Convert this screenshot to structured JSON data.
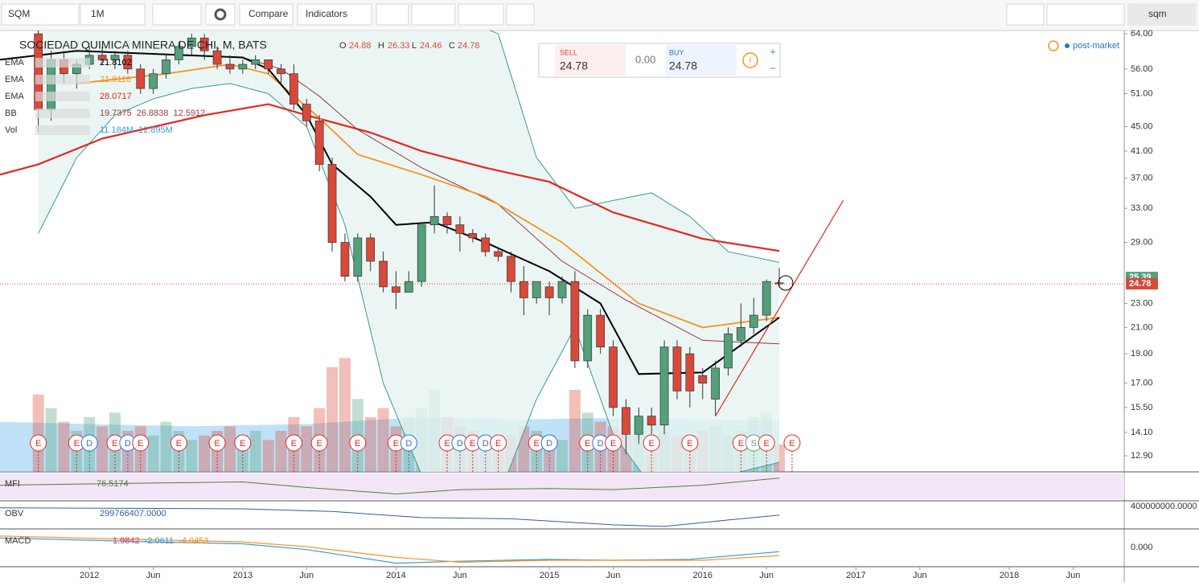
{
  "toolbar": {
    "symbol": "SQM",
    "interval": "1M",
    "compare": "Compare",
    "indicators": "Indicators",
    "search": "sqm"
  },
  "trade": {
    "sell_label": "SELL",
    "sell": 24.78,
    "spread": "0.00",
    "buy_label": "BUY",
    "buy": 24.78
  },
  "post_market": "post-market",
  "chart_data": {
    "type": "candlestick",
    "title": "SOCIEDAD QUIMICA MINERA DE CHI, M, BATS",
    "ohlc_labels": {
      "o": "O",
      "o_value": 24.88,
      "h": "H",
      "h_value": 26.33,
      "l": "L",
      "l_value": 24.46,
      "c": "C",
      "c_value": 24.78
    },
    "x": [
      "2011-09",
      "2011-10",
      "2011-11",
      "2011-12",
      "2012-01",
      "2012-02",
      "2012-03",
      "2012-04",
      "2012-05",
      "2012-06",
      "2012-07",
      "2012-08",
      "2012-09",
      "2012-10",
      "2012-11",
      "2012-12",
      "2013-01",
      "2013-02",
      "2013-03",
      "2013-04",
      "2013-05",
      "2013-06",
      "2013-07",
      "2013-08",
      "2013-09",
      "2013-10",
      "2013-11",
      "2013-12",
      "2014-01",
      "2014-02",
      "2014-03",
      "2014-04",
      "2014-05",
      "2014-06",
      "2014-07",
      "2014-08",
      "2014-09",
      "2014-10",
      "2014-11",
      "2014-12",
      "2015-01",
      "2015-02",
      "2015-03",
      "2015-04",
      "2015-05",
      "2015-06",
      "2015-07",
      "2015-08",
      "2015-09",
      "2015-10",
      "2015-11",
      "2015-12",
      "2016-01",
      "2016-02",
      "2016-03",
      "2016-04",
      "2016-05",
      "2016-06",
      "2016-07"
    ],
    "open": [
      64,
      48,
      58,
      55,
      57,
      59,
      58,
      59,
      56,
      52,
      55,
      58,
      61,
      63,
      60,
      57,
      56,
      57,
      58,
      56,
      55,
      49,
      46,
      39,
      29,
      25.5,
      29.5,
      27,
      24.5,
      24,
      25,
      31,
      32,
      31,
      30,
      29.5,
      28,
      27.5,
      25,
      23.5,
      24.5,
      23.5,
      25,
      18.5,
      22,
      19.5,
      15.5,
      14,
      15,
      14.5,
      19.5,
      19,
      17.5,
      16,
      18,
      20,
      21,
      22,
      24.88
    ],
    "high": [
      65,
      60,
      60,
      58,
      61,
      61,
      60,
      60,
      57,
      56,
      59,
      62,
      64,
      64,
      61,
      59,
      58,
      59,
      58,
      57,
      57,
      50,
      47,
      40,
      30,
      30,
      30,
      28,
      26,
      26,
      31,
      36,
      32.5,
      32,
      30.5,
      30,
      28.5,
      28,
      26.5,
      25,
      25,
      25.5,
      26,
      22.5,
      22.5,
      20,
      16,
      15.5,
      15.5,
      20,
      20,
      19.5,
      18,
      18.5,
      21,
      23,
      23.5,
      25.2,
      26.33
    ],
    "low": [
      44,
      46,
      53,
      52,
      56,
      57,
      56,
      55,
      51,
      51,
      54,
      57,
      59,
      58,
      56,
      55,
      55,
      56,
      55,
      53,
      48,
      45,
      38,
      28,
      25,
      25,
      26,
      24,
      22.5,
      24,
      24.5,
      30,
      30,
      28,
      29,
      27.5,
      27,
      24,
      22,
      23,
      22,
      23,
      18,
      18,
      19,
      15,
      13,
      13.5,
      14,
      14,
      16,
      15.5,
      16,
      15,
      17.5,
      19.5,
      20.5,
      21.5,
      24.46
    ],
    "close": [
      48,
      58,
      55,
      57,
      59,
      58,
      59,
      56,
      52,
      55,
      58,
      61,
      63,
      60,
      57,
      56,
      57,
      58,
      56,
      55,
      49,
      46,
      39,
      29,
      25.5,
      29.5,
      27,
      24.5,
      24,
      25,
      31,
      32,
      31,
      30,
      29.5,
      28,
      27.5,
      25,
      23.5,
      25,
      23.5,
      25,
      18.5,
      22,
      19.5,
      15.5,
      14,
      15,
      14.5,
      19.5,
      16.5,
      16.5,
      17,
      18,
      20.5,
      21,
      22,
      25,
      24.78
    ],
    "up_color": "#53a07a",
    "down_color": "#d9493a",
    "volume": [
      17,
      14,
      11,
      9,
      12,
      10,
      13,
      9,
      10,
      8,
      11,
      9,
      7,
      8,
      9,
      10,
      8,
      9,
      7,
      9,
      12,
      10,
      14,
      23,
      25,
      16,
      12,
      14,
      10,
      12,
      14,
      18,
      12,
      10,
      9,
      8,
      7,
      8,
      10,
      9,
      8,
      7,
      18,
      13,
      11,
      10,
      9,
      12,
      8,
      9,
      8,
      7,
      9,
      10,
      8,
      9,
      12,
      13,
      6
    ],
    "volume_ylim": [
      0,
      30
    ],
    "volume_ma": {
      "x": [
        "2011-06",
        "2012-01",
        "2012-09",
        "2013-06",
        "2014-03",
        "2014-10",
        "2015-06",
        "2016-01",
        "2016-07"
      ],
      "values": [
        11,
        10.5,
        10,
        10.5,
        12,
        11.5,
        11.8,
        11.5,
        11.2
      ],
      "color": "#8ccbf2"
    },
    "xlim": [
      "2011-06",
      "2018-10"
    ],
    "xticks": [
      {
        "value": "2012-01",
        "label": "2012"
      },
      {
        "value": "2012-06",
        "label": "Jun"
      },
      {
        "value": "2013-01",
        "label": "2013"
      },
      {
        "value": "2013-06",
        "label": "Jun"
      },
      {
        "value": "2014-01",
        "label": "2014"
      },
      {
        "value": "2014-06",
        "label": "Jun"
      },
      {
        "value": "2015-01",
        "label": "2015"
      },
      {
        "value": "2015-06",
        "label": "Jun"
      },
      {
        "value": "2016-01",
        "label": "2016"
      },
      {
        "value": "2016-06",
        "label": "Jun"
      },
      {
        "value": "2017-01",
        "label": "2017"
      },
      {
        "value": "2017-06",
        "label": "Jun"
      },
      {
        "value": "2018-01",
        "label": "2018"
      },
      {
        "value": "2018-06",
        "label": "Jun"
      }
    ],
    "ylim": [
      12.14,
      64.8
    ],
    "log_scale": true,
    "yticks": [
      {
        "value": 64,
        "label": "64.00"
      },
      {
        "value": 56,
        "label": "56.00"
      },
      {
        "value": 51,
        "label": "51.00"
      },
      {
        "value": 45,
        "label": "45.00"
      },
      {
        "value": 41,
        "label": "41.00"
      },
      {
        "value": 37,
        "label": "37.00"
      },
      {
        "value": 33,
        "label": "33.00"
      },
      {
        "value": 29,
        "label": "29.00"
      },
      {
        "value": 23,
        "label": "23.00"
      },
      {
        "value": 21,
        "label": "21.00"
      },
      {
        "value": 19,
        "label": "19.00"
      },
      {
        "value": 17,
        "label": "17.00"
      },
      {
        "value": 15.5,
        "label": "15.50"
      },
      {
        "value": 14.1,
        "label": "14.10"
      },
      {
        "value": 12.9,
        "label": "12.90"
      }
    ],
    "price_labels": [
      {
        "value": 25.39,
        "color": "#53a07a"
      },
      {
        "value": 24.78,
        "color": "#d9493a"
      }
    ],
    "legend": [
      {
        "name": "EMA",
        "values": [
          21.8102
        ],
        "color": "#000000"
      },
      {
        "name": "EMA",
        "values": [
          21.8118
        ],
        "color": "#f7931e"
      },
      {
        "name": "EMA",
        "values": [
          28.0717
        ],
        "color": "#e5261f"
      },
      {
        "name": "BB",
        "values": [
          19.7375,
          26.8838,
          12.5912
        ],
        "color": "#a33b3b"
      },
      {
        "name": "Vol",
        "values": [
          "11.184M",
          "12.895M"
        ],
        "color": "#3a9bd9"
      }
    ],
    "bands": {
      "x": [
        "2011-09",
        "2011-12",
        "2012-03",
        "2012-06",
        "2012-09",
        "2012-12",
        "2013-03",
        "2013-06",
        "2013-09",
        "2013-12",
        "2014-03",
        "2014-06",
        "2014-09",
        "2014-12",
        "2015-03",
        "2015-06",
        "2015-09",
        "2015-12",
        "2016-03",
        "2016-07"
      ],
      "upper": [
        78,
        82,
        84,
        80,
        76,
        74,
        76,
        80,
        84,
        80,
        74,
        68,
        64,
        40,
        33,
        34,
        35,
        32,
        28,
        26.88
      ],
      "lower": [
        30,
        40,
        47,
        50,
        52,
        53,
        51,
        45,
        31,
        17,
        12,
        10,
        11,
        16,
        21,
        14,
        11.5,
        11,
        12,
        12.59
      ],
      "color": "#3a9a94",
      "fill": "#e6f4f1"
    },
    "overlays": [
      {
        "x": [
          "2011-06",
          "2011-09",
          "2012-02",
          "2012-10",
          "2013-03",
          "2013-06",
          "2013-11",
          "2014-03",
          "2014-08",
          "2015-01",
          "2015-06",
          "2016-01",
          "2016-07"
        ],
        "values": [
          37.5,
          39,
          43,
          47,
          49,
          47,
          44,
          41,
          38.5,
          36.5,
          32.5,
          29.4,
          28.0717
        ],
        "color": "#e5261f"
      },
      {
        "x": [
          "2013-01",
          "2013-04",
          "2013-07",
          "2013-10",
          "2014-03",
          "2014-09",
          "2015-02",
          "2015-07",
          "2016-01",
          "2016-07"
        ],
        "values": [
          58.5,
          56,
          50.5,
          44.5,
          38.5,
          33.5,
          27,
          23.3,
          20,
          19.7375
        ],
        "color": "#8b3a3a"
      },
      {
        "x": [
          "2011-12",
          "2012-07",
          "2012-12",
          "2013-03",
          "2013-07",
          "2013-10",
          "2014-03",
          "2014-08",
          "2015-02",
          "2015-08",
          "2016-01",
          "2016-07"
        ],
        "values": [
          53,
          55,
          57,
          55,
          46.5,
          40.5,
          37.5,
          34.5,
          29,
          23,
          21,
          21.8118
        ],
        "color": "#f7931e"
      },
      {
        "x": [
          "2011-06",
          "2011-12",
          "2013-01",
          "2013-03",
          "2013-06",
          "2013-08",
          "2013-11",
          "2014-01",
          "2014-04",
          "2014-08",
          "2015-01",
          "2015-05",
          "2015-08",
          "2016-01",
          "2016-07"
        ],
        "values": [
          58,
          60,
          58.5,
          56,
          47,
          39,
          34.5,
          31,
          31.3,
          29,
          26,
          23,
          17.6,
          17.7,
          21.8102
        ],
        "color": "#000000"
      }
    ],
    "trendline": {
      "x": [
        "2016-02",
        "2016-12"
      ],
      "values": [
        15,
        34
      ],
      "color": "#e5261f"
    },
    "events": [
      {
        "x": "2011-09",
        "label": "E"
      },
      {
        "x": "2011-12",
        "label": "E"
      },
      {
        "x": "2012-01",
        "label": "D"
      },
      {
        "x": "2012-03",
        "label": "E"
      },
      {
        "x": "2012-04",
        "label": "D"
      },
      {
        "x": "2012-05",
        "label": "E"
      },
      {
        "x": "2012-08",
        "label": "E"
      },
      {
        "x": "2012-11",
        "label": "E"
      },
      {
        "x": "2013-01",
        "label": "E"
      },
      {
        "x": "2013-05",
        "label": "E"
      },
      {
        "x": "2013-07",
        "label": "E"
      },
      {
        "x": "2013-10",
        "label": "E"
      },
      {
        "x": "2014-01",
        "label": "E"
      },
      {
        "x": "2014-02",
        "label": "D"
      },
      {
        "x": "2014-05",
        "label": "E"
      },
      {
        "x": "2014-06",
        "label": "D"
      },
      {
        "x": "2014-07",
        "label": "E"
      },
      {
        "x": "2014-08",
        "label": "D"
      },
      {
        "x": "2014-09",
        "label": "E"
      },
      {
        "x": "2014-12",
        "label": "E"
      },
      {
        "x": "2015-01",
        "label": "D"
      },
      {
        "x": "2015-04",
        "label": "E"
      },
      {
        "x": "2015-05",
        "label": "D"
      },
      {
        "x": "2015-06",
        "label": "E"
      },
      {
        "x": "2015-09",
        "label": "E"
      },
      {
        "x": "2015-12",
        "label": "E"
      },
      {
        "x": "2016-04",
        "label": "E"
      },
      {
        "x": "2016-05",
        "label": "S"
      },
      {
        "x": "2016-06",
        "label": "E"
      },
      {
        "x": "2016-08",
        "label": "E"
      }
    ],
    "panes": {
      "mfi": {
        "name": "MFI",
        "value": 76.5174,
        "x": [
          "2011-06",
          "2012-06",
          "2013-01",
          "2013-06",
          "2014-01",
          "2014-06",
          "2015-01",
          "2015-06",
          "2016-01",
          "2016-07"
        ],
        "values": [
          70,
          72,
          73,
          68,
          62,
          66,
          67,
          66,
          70,
          76.5174
        ],
        "ylim": [
          58,
          80
        ],
        "color": "#4f7f3b"
      },
      "obv": {
        "name": "OBV",
        "last_label": "299766407.0000",
        "x": [
          "2011-06",
          "2012-06",
          "2013-01",
          "2013-08",
          "2014-03",
          "2014-10",
          "2015-06",
          "2015-10",
          "2016-03",
          "2016-07"
        ],
        "values": [
          360000000,
          355000000,
          352000000,
          330000000,
          280000000,
          270000000,
          220000000,
          207000000,
          260000000,
          299766407
        ],
        "ylim": [
          193000000,
          405000000
        ],
        "yticks": [
          {
            "value": 400000000,
            "label": "400000000.0000"
          }
        ],
        "color": "#2f5f9a"
      },
      "macd": {
        "name": "MACD",
        "legend_values": [
          1.9842,
          -2.0611,
          -4.0453
        ],
        "legend_colors": [
          "#d6336c",
          "#3a9bd9",
          "#f7931e"
        ],
        "ylim": [
          -9,
          8
        ],
        "yticks": [
          {
            "value": 0,
            "label": "0.000"
          }
        ],
        "series": [
          {
            "x": [
              "2011-06",
              "2012-06",
              "2013-01",
              "2013-06",
              "2014-01",
              "2014-06",
              "2015-01",
              "2015-06",
              "2015-12",
              "2016-07"
            ],
            "values": [
              5,
              3,
              2,
              -1,
              -8,
              -7,
              -6,
              -6.5,
              -6,
              -2.0611
            ],
            "color": "#3a9bd9"
          },
          {
            "x": [
              "2011-06",
              "2012-06",
              "2013-01",
              "2013-06",
              "2014-01",
              "2014-06",
              "2015-01",
              "2015-06",
              "2016-01",
              "2016-07"
            ],
            "values": [
              6,
              4,
              3,
              0.5,
              -5,
              -7.5,
              -6.5,
              -6.5,
              -6.5,
              -4.0453
            ],
            "color": "#f7931e"
          }
        ]
      }
    }
  }
}
